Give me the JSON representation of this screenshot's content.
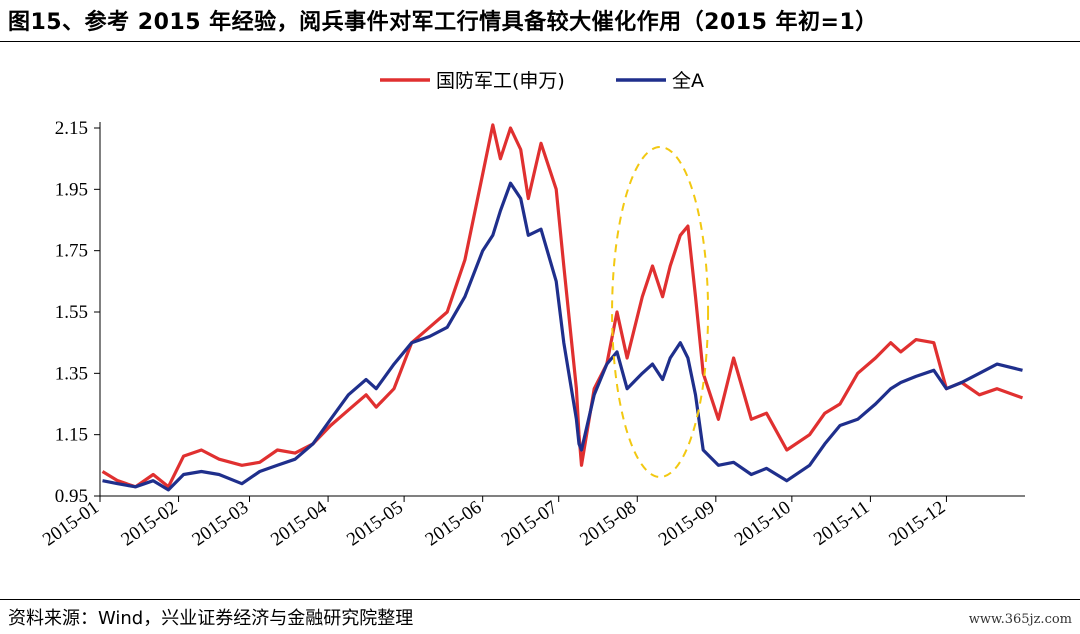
{
  "header": {
    "title": "图15、参考 2015 年经验，阅兵事件对军工行情具备较大催化作用（2015 年初=1）"
  },
  "footer": {
    "source": "资料来源：Wind，兴业证券经济与金融研究院整理",
    "watermark": "www.365jz.com"
  },
  "chart_data": {
    "type": "line",
    "title": "",
    "xlabel": "",
    "ylabel": "",
    "ylim": [
      0.95,
      2.2
    ],
    "yticks": [
      "0.95",
      "1.15",
      "1.35",
      "1.55",
      "1.75",
      "1.95",
      "2.15"
    ],
    "xticks": [
      "2015-01",
      "2015-02",
      "2015-03",
      "2015-04",
      "2015-05",
      "2015-06",
      "2015-07",
      "2015-08",
      "2015-09",
      "2015-10",
      "2015-11",
      "2015-12"
    ],
    "legend_position": "top-center",
    "highlight": {
      "type": "ellipse",
      "style": "dashed",
      "color": "#F2C811",
      "around": "2015-08"
    },
    "series": [
      {
        "name": "国防军工(申万)",
        "color": "#E03030",
        "points": [
          [
            "2015-01-02",
            1.03
          ],
          [
            "2015-01-08",
            1.0
          ],
          [
            "2015-01-15",
            0.98
          ],
          [
            "2015-01-22",
            1.02
          ],
          [
            "2015-01-28",
            0.98
          ],
          [
            "2015-02-03",
            1.08
          ],
          [
            "2015-02-10",
            1.1
          ],
          [
            "2015-02-17",
            1.07
          ],
          [
            "2015-02-26",
            1.05
          ],
          [
            "2015-03-05",
            1.06
          ],
          [
            "2015-03-12",
            1.1
          ],
          [
            "2015-03-19",
            1.09
          ],
          [
            "2015-03-26",
            1.12
          ],
          [
            "2015-04-02",
            1.18
          ],
          [
            "2015-04-09",
            1.23
          ],
          [
            "2015-04-16",
            1.28
          ],
          [
            "2015-04-20",
            1.24
          ],
          [
            "2015-04-27",
            1.3
          ],
          [
            "2015-05-04",
            1.45
          ],
          [
            "2015-05-11",
            1.5
          ],
          [
            "2015-05-18",
            1.55
          ],
          [
            "2015-05-25",
            1.72
          ],
          [
            "2015-06-01",
            2.0
          ],
          [
            "2015-06-05",
            2.16
          ],
          [
            "2015-06-08",
            2.05
          ],
          [
            "2015-06-12",
            2.15
          ],
          [
            "2015-06-16",
            2.08
          ],
          [
            "2015-06-19",
            1.92
          ],
          [
            "2015-06-24",
            2.1
          ],
          [
            "2015-06-30",
            1.95
          ],
          [
            "2015-07-03",
            1.7
          ],
          [
            "2015-07-08",
            1.3
          ],
          [
            "2015-07-09",
            1.15
          ],
          [
            "2015-07-10",
            1.05
          ],
          [
            "2015-07-15",
            1.3
          ],
          [
            "2015-07-20",
            1.38
          ],
          [
            "2015-07-24",
            1.55
          ],
          [
            "2015-07-28",
            1.4
          ],
          [
            "2015-08-03",
            1.6
          ],
          [
            "2015-08-07",
            1.7
          ],
          [
            "2015-08-11",
            1.6
          ],
          [
            "2015-08-14",
            1.7
          ],
          [
            "2015-08-18",
            1.8
          ],
          [
            "2015-08-21",
            1.83
          ],
          [
            "2015-08-24",
            1.6
          ],
          [
            "2015-08-27",
            1.35
          ],
          [
            "2015-09-02",
            1.2
          ],
          [
            "2015-09-08",
            1.4
          ],
          [
            "2015-09-15",
            1.2
          ],
          [
            "2015-09-21",
            1.22
          ],
          [
            "2015-09-29",
            1.1
          ],
          [
            "2015-10-08",
            1.15
          ],
          [
            "2015-10-14",
            1.22
          ],
          [
            "2015-10-20",
            1.25
          ],
          [
            "2015-10-27",
            1.35
          ],
          [
            "2015-11-03",
            1.4
          ],
          [
            "2015-11-09",
            1.45
          ],
          [
            "2015-11-13",
            1.42
          ],
          [
            "2015-11-19",
            1.46
          ],
          [
            "2015-11-26",
            1.45
          ],
          [
            "2015-12-01",
            1.3
          ],
          [
            "2015-12-07",
            1.32
          ],
          [
            "2015-12-14",
            1.28
          ],
          [
            "2015-12-21",
            1.3
          ],
          [
            "2015-12-31",
            1.27
          ]
        ]
      },
      {
        "name": "全A",
        "color": "#1F2F8C",
        "points": [
          [
            "2015-01-02",
            1.0
          ],
          [
            "2015-01-08",
            0.99
          ],
          [
            "2015-01-15",
            0.98
          ],
          [
            "2015-01-22",
            1.0
          ],
          [
            "2015-01-28",
            0.97
          ],
          [
            "2015-02-03",
            1.02
          ],
          [
            "2015-02-10",
            1.03
          ],
          [
            "2015-02-17",
            1.02
          ],
          [
            "2015-02-26",
            0.99
          ],
          [
            "2015-03-05",
            1.03
          ],
          [
            "2015-03-12",
            1.05
          ],
          [
            "2015-03-19",
            1.07
          ],
          [
            "2015-03-26",
            1.12
          ],
          [
            "2015-04-02",
            1.2
          ],
          [
            "2015-04-09",
            1.28
          ],
          [
            "2015-04-16",
            1.33
          ],
          [
            "2015-04-20",
            1.3
          ],
          [
            "2015-04-27",
            1.38
          ],
          [
            "2015-05-04",
            1.45
          ],
          [
            "2015-05-11",
            1.47
          ],
          [
            "2015-05-18",
            1.5
          ],
          [
            "2015-05-25",
            1.6
          ],
          [
            "2015-06-01",
            1.75
          ],
          [
            "2015-06-05",
            1.8
          ],
          [
            "2015-06-08",
            1.88
          ],
          [
            "2015-06-12",
            1.97
          ],
          [
            "2015-06-16",
            1.92
          ],
          [
            "2015-06-19",
            1.8
          ],
          [
            "2015-06-24",
            1.82
          ],
          [
            "2015-06-30",
            1.65
          ],
          [
            "2015-07-03",
            1.45
          ],
          [
            "2015-07-08",
            1.2
          ],
          [
            "2015-07-09",
            1.12
          ],
          [
            "2015-07-10",
            1.1
          ],
          [
            "2015-07-15",
            1.28
          ],
          [
            "2015-07-20",
            1.38
          ],
          [
            "2015-07-24",
            1.42
          ],
          [
            "2015-07-28",
            1.3
          ],
          [
            "2015-08-03",
            1.35
          ],
          [
            "2015-08-07",
            1.38
          ],
          [
            "2015-08-11",
            1.33
          ],
          [
            "2015-08-14",
            1.4
          ],
          [
            "2015-08-18",
            1.45
          ],
          [
            "2015-08-21",
            1.4
          ],
          [
            "2015-08-24",
            1.28
          ],
          [
            "2015-08-27",
            1.1
          ],
          [
            "2015-09-02",
            1.05
          ],
          [
            "2015-09-08",
            1.06
          ],
          [
            "2015-09-15",
            1.02
          ],
          [
            "2015-09-21",
            1.04
          ],
          [
            "2015-09-29",
            1.0
          ],
          [
            "2015-10-08",
            1.05
          ],
          [
            "2015-10-14",
            1.12
          ],
          [
            "2015-10-20",
            1.18
          ],
          [
            "2015-10-27",
            1.2
          ],
          [
            "2015-11-03",
            1.25
          ],
          [
            "2015-11-09",
            1.3
          ],
          [
            "2015-11-13",
            1.32
          ],
          [
            "2015-11-19",
            1.34
          ],
          [
            "2015-11-26",
            1.36
          ],
          [
            "2015-12-01",
            1.3
          ],
          [
            "2015-12-07",
            1.32
          ],
          [
            "2015-12-14",
            1.35
          ],
          [
            "2015-12-21",
            1.38
          ],
          [
            "2015-12-31",
            1.36
          ]
        ]
      }
    ]
  }
}
